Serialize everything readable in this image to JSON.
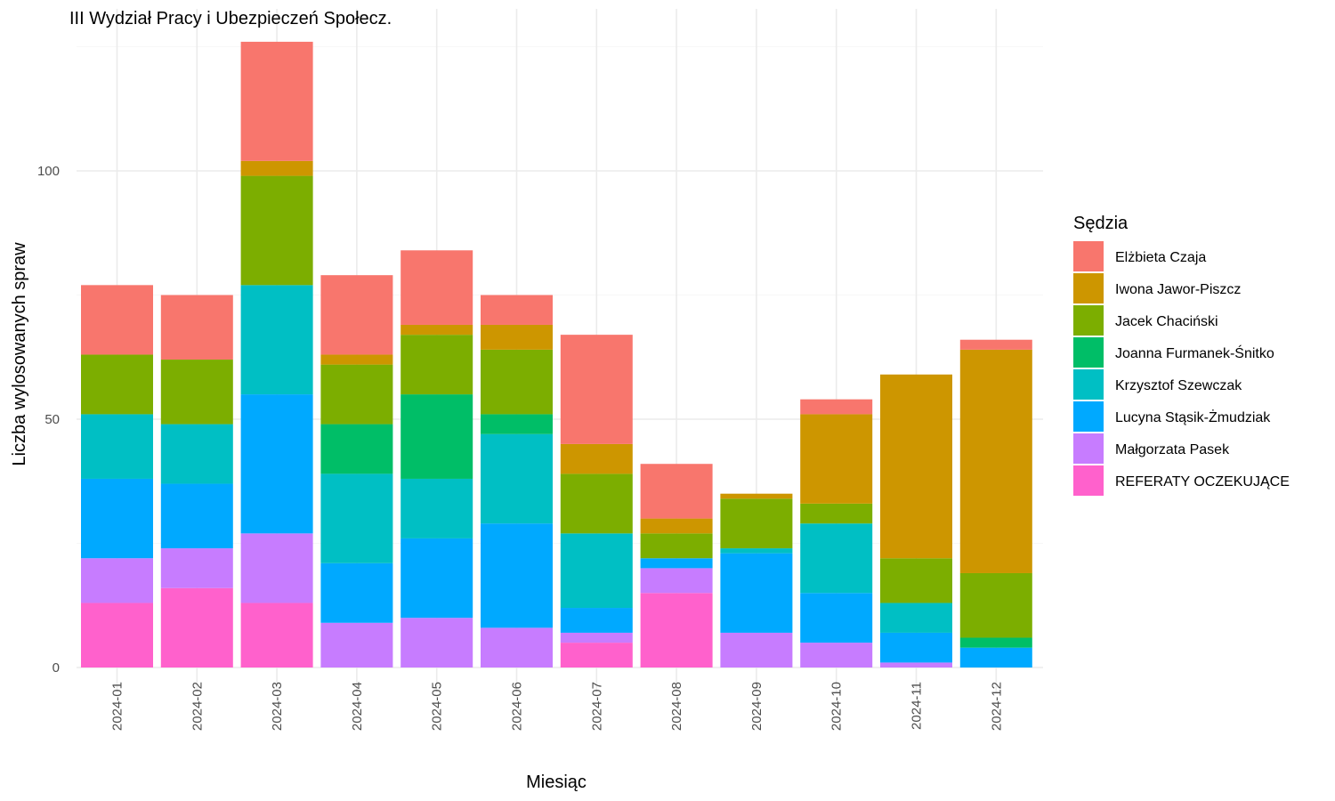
{
  "chart_data": {
    "type": "bar",
    "stacked": true,
    "title": "III Wydział Pracy i Ubezpieczeń Społecz.",
    "xlabel": "Miesiąc",
    "ylabel": "Liczba wylosowanych spraw",
    "ylim": [
      0,
      126
    ],
    "yticks": [
      0,
      50,
      100
    ],
    "grid": true,
    "legend_title": "Sędzia",
    "legend_position": "right",
    "categories": [
      "2024-01",
      "2024-02",
      "2024-03",
      "2024-04",
      "2024-05",
      "2024-06",
      "2024-07",
      "2024-08",
      "2024-09",
      "2024-10",
      "2024-11",
      "2024-12"
    ],
    "series": [
      {
        "name": "REFERATY OCZEKUJĄCE",
        "color": "#FF61CC",
        "values": [
          13,
          16,
          13,
          0,
          0,
          0,
          5,
          15,
          0,
          0,
          0,
          0
        ]
      },
      {
        "name": "Małgorzata Pasek",
        "color": "#C77CFF",
        "values": [
          9,
          8,
          14,
          9,
          10,
          8,
          2,
          5,
          7,
          5,
          1,
          0
        ]
      },
      {
        "name": "Lucyna Stąsik-Żmudziak",
        "color": "#00A9FF",
        "values": [
          16,
          13,
          28,
          12,
          16,
          21,
          5,
          2,
          16,
          10,
          6,
          4
        ]
      },
      {
        "name": "Krzysztof Szewczak",
        "color": "#00BFC4",
        "values": [
          13,
          12,
          22,
          18,
          12,
          18,
          15,
          0,
          1,
          14,
          6,
          0
        ]
      },
      {
        "name": "Joanna Furmanek-Śnitko",
        "color": "#00BE67",
        "values": [
          0,
          0,
          0,
          10,
          17,
          4,
          0,
          0,
          0,
          0,
          0,
          2
        ]
      },
      {
        "name": "Jacek Chaciński",
        "color": "#7CAE00",
        "values": [
          12,
          13,
          22,
          12,
          12,
          13,
          12,
          5,
          10,
          4,
          9,
          13
        ]
      },
      {
        "name": "Iwona Jawor-Piszcz",
        "color": "#CD9600",
        "values": [
          0,
          0,
          3,
          2,
          2,
          5,
          6,
          3,
          1,
          18,
          37,
          45
        ]
      },
      {
        "name": "Elżbieta Czaja",
        "color": "#F8766D",
        "values": [
          14,
          13,
          24,
          16,
          15,
          6,
          22,
          11,
          0,
          3,
          0,
          2
        ]
      }
    ],
    "legend_order": [
      "Elżbieta Czaja",
      "Iwona Jawor-Piszcz",
      "Jacek Chaciński",
      "Joanna Furmanek-Śnitko",
      "Krzysztof Szewczak",
      "Lucyna Stąsik-Żmudziak",
      "Małgorzata Pasek",
      "REFERATY OCZEKUJĄCE"
    ]
  }
}
